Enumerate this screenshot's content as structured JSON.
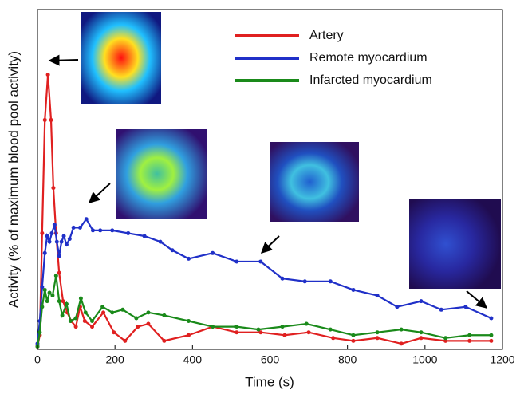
{
  "chart_data": {
    "type": "line",
    "xlabel": "Time (s)",
    "ylabel": "Activity (% of maximum blood pool activity)",
    "xlim": [
      0,
      1200
    ],
    "xticks": [
      0,
      200,
      400,
      600,
      800,
      1000,
      1200
    ],
    "ylim": [
      0,
      120
    ],
    "legend": "upper right",
    "series": [
      {
        "name": "Artery",
        "color": "#e02020",
        "x": [
          0,
          6,
          12,
          19,
          27,
          35,
          41,
          48,
          56,
          66,
          77,
          87,
          99,
          110,
          122,
          141,
          170,
          197,
          226,
          259,
          286,
          327,
          390,
          452,
          514,
          576,
          638,
          700,
          763,
          815,
          877,
          939,
          990,
          1053,
          1115,
          1171
        ],
        "values": [
          1,
          5,
          41,
          81,
          97,
          81,
          57,
          41,
          27,
          17,
          13,
          10,
          8,
          15,
          10,
          8,
          13,
          6,
          3,
          8,
          9,
          3,
          5,
          8,
          6,
          6,
          5,
          6,
          4,
          3,
          4,
          2,
          4,
          3,
          3,
          3
        ]
      },
      {
        "name": "Remote myocardium",
        "color": "#2030c8",
        "x": [
          0,
          6,
          12,
          19,
          25,
          31,
          37,
          44,
          50,
          56,
          62,
          68,
          75,
          83,
          93,
          110,
          126,
          143,
          162,
          193,
          234,
          276,
          317,
          348,
          390,
          452,
          514,
          576,
          632,
          690,
          756,
          815,
          877,
          928,
          990,
          1042,
          1105,
          1171
        ],
        "values": [
          2,
          10,
          22,
          34,
          40,
          38,
          41,
          44,
          38,
          33,
          38,
          40,
          37,
          39,
          43,
          43,
          46,
          42,
          42,
          42,
          41,
          40,
          38,
          35,
          32,
          34,
          31,
          31,
          25,
          24,
          24,
          21,
          19,
          15,
          17,
          14,
          15,
          11
        ]
      },
      {
        "name": "Infarcted myocardium",
        "color": "#1a8a1a",
        "x": [
          0,
          6,
          12,
          19,
          25,
          31,
          39,
          48,
          56,
          64,
          75,
          85,
          99,
          112,
          124,
          141,
          168,
          193,
          220,
          255,
          286,
          327,
          390,
          452,
          514,
          570,
          632,
          694,
          756,
          815,
          877,
          939,
          990,
          1053,
          1115,
          1171
        ],
        "values": [
          1,
          6,
          15,
          21,
          17,
          20,
          19,
          26,
          17,
          12,
          16,
          10,
          11,
          18,
          13,
          10,
          15,
          13,
          14,
          11,
          13,
          12,
          10,
          8,
          8,
          7,
          8,
          9,
          7,
          5,
          6,
          7,
          6,
          4,
          5,
          5
        ]
      }
    ]
  }
}
